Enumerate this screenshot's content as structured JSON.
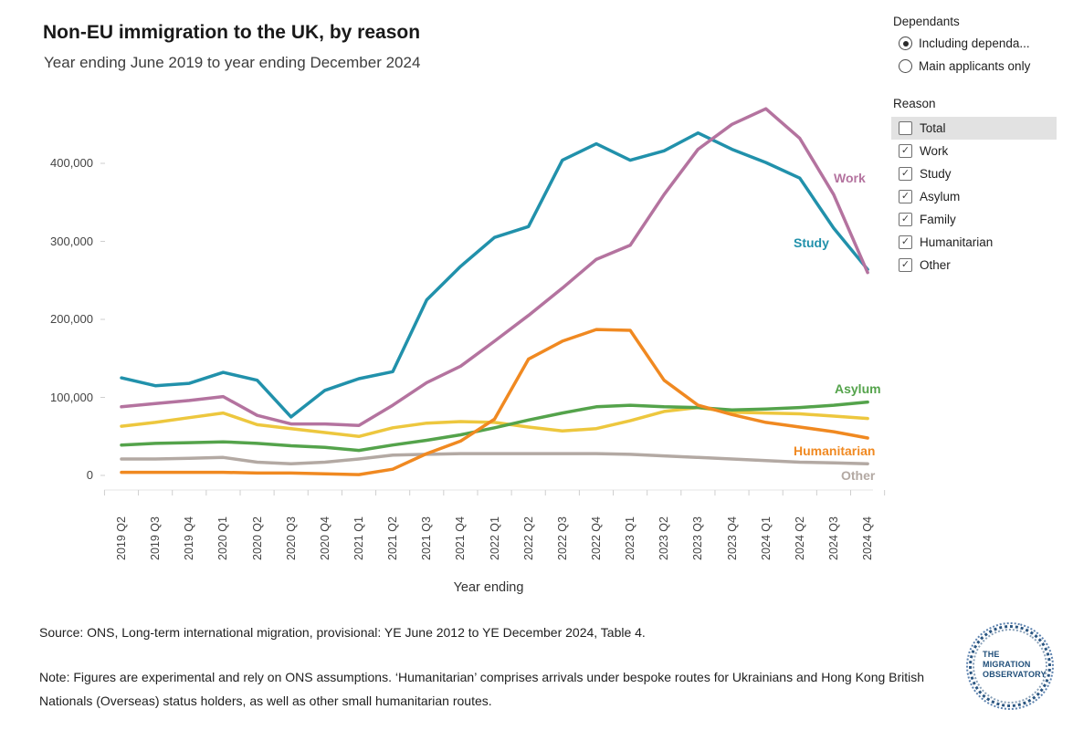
{
  "header": {
    "title": "Non-EU immigration to the UK, by reason",
    "subtitle": "Year ending June 2019 to year ending December 2024"
  },
  "filters": {
    "dependants": {
      "label": "Dependants",
      "options": [
        {
          "label": "Including dependa...",
          "selected": true
        },
        {
          "label": "Main applicants only",
          "selected": false
        }
      ]
    },
    "reason": {
      "label": "Reason",
      "options": [
        {
          "label": "Total",
          "checked": false,
          "highlighted": true
        },
        {
          "label": "Work",
          "checked": true,
          "highlighted": false
        },
        {
          "label": "Study",
          "checked": true,
          "highlighted": false
        },
        {
          "label": "Asylum",
          "checked": true,
          "highlighted": false
        },
        {
          "label": "Family",
          "checked": true,
          "highlighted": false
        },
        {
          "label": "Humanitarian",
          "checked": true,
          "highlighted": false
        },
        {
          "label": "Other",
          "checked": true,
          "highlighted": false
        }
      ]
    }
  },
  "chart_data": {
    "type": "line",
    "title": "Non-EU immigration to the UK, by reason",
    "subtitle": "Year ending June 2019 to year ending December 2024",
    "xlabel": "Year ending",
    "ylabel": "",
    "ylim": [
      0,
      480000
    ],
    "grid": false,
    "legend_position": "end-of-line labels",
    "y_ticks": [
      0,
      100000,
      200000,
      300000,
      400000
    ],
    "y_tick_labels": [
      "0",
      "100,000",
      "200,000",
      "300,000",
      "400,000"
    ],
    "categories": [
      "2019 Q2",
      "2019 Q3",
      "2019 Q4",
      "2020 Q1",
      "2020 Q2",
      "2020 Q3",
      "2020 Q4",
      "2021 Q1",
      "2021 Q2",
      "2021 Q3",
      "2021 Q4",
      "2022 Q1",
      "2022 Q2",
      "2022 Q3",
      "2022 Q4",
      "2023 Q1",
      "2023 Q2",
      "2023 Q3",
      "2023 Q4",
      "2024 Q1",
      "2024 Q2",
      "2024 Q3",
      "2024 Q4"
    ],
    "labeled_series": [
      "Work",
      "Study",
      "Asylum",
      "Humanitarian",
      "Other"
    ],
    "series": [
      {
        "name": "Work",
        "color": "#b4739f",
        "values": [
          88000,
          92000,
          96000,
          101000,
          77000,
          66000,
          66000,
          64000,
          90000,
          119000,
          140000,
          172000,
          205000,
          240000,
          277000,
          295000,
          360000,
          418000,
          450000,
          470000,
          432000,
          360000,
          260000
        ]
      },
      {
        "name": "Study",
        "color": "#2191ab",
        "values": [
          125000,
          115000,
          118000,
          132000,
          122000,
          75000,
          109000,
          124000,
          133000,
          225000,
          268000,
          305000,
          319000,
          404000,
          425000,
          404000,
          416000,
          439000,
          418000,
          401000,
          381000,
          317000,
          264000
        ]
      },
      {
        "name": "Asylum",
        "color": "#54a34b",
        "values": [
          39000,
          41000,
          42000,
          43000,
          41000,
          38000,
          36000,
          32000,
          39000,
          45000,
          52000,
          61000,
          71000,
          80000,
          88000,
          90000,
          88000,
          87000,
          84000,
          85000,
          87000,
          90000,
          94000
        ]
      },
      {
        "name": "Family",
        "color": "#edc73e",
        "values": [
          63000,
          68000,
          74000,
          80000,
          65000,
          60000,
          55000,
          50000,
          61000,
          67000,
          69000,
          68000,
          62000,
          57000,
          60000,
          70000,
          82000,
          87000,
          81000,
          80000,
          79000,
          76000,
          73000
        ]
      },
      {
        "name": "Humanitarian",
        "color": "#f08921",
        "values": [
          4000,
          4000,
          4000,
          4000,
          3000,
          3000,
          2000,
          1000,
          8000,
          28000,
          44000,
          72000,
          149000,
          172000,
          187000,
          186000,
          122000,
          90000,
          78000,
          68000,
          62000,
          56000,
          48000
        ]
      },
      {
        "name": "Other",
        "color": "#b3a9a3",
        "values": [
          21000,
          21000,
          22000,
          23000,
          17000,
          15000,
          17000,
          21000,
          26000,
          27000,
          28000,
          28000,
          28000,
          28000,
          28000,
          27000,
          25000,
          23000,
          21000,
          19000,
          17000,
          16000,
          15000
        ]
      }
    ]
  },
  "footer": {
    "source": "Source: ONS, Long-term international migration, provisional: YE June 2012 to YE December 2024, Table 4.",
    "note": "Note: Figures are experimental and rely on ONS assumptions. ‘Humanitarian’ comprises arrivals under bespoke routes for Ukrainians and Hong Kong British Nationals (Overseas) status holders, as well as other small humanitarian routes.",
    "logo_text": "THE MIGRATION OBSERVATORY"
  }
}
